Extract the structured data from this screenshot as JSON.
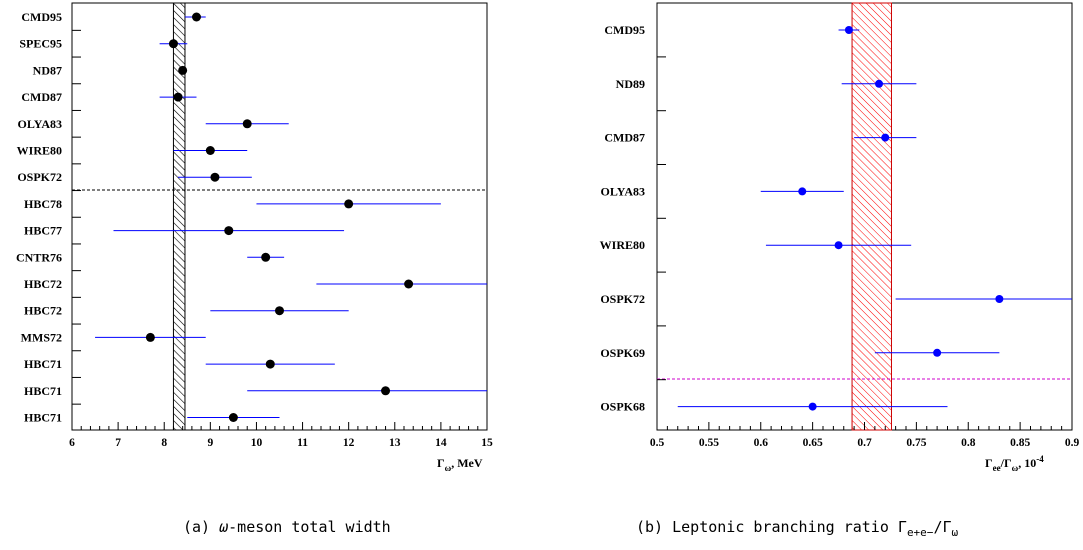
{
  "chart_data": [
    {
      "type": "scatter",
      "title": "",
      "xlabel": "Γ_ω, MeV",
      "xlim": [
        6,
        15
      ],
      "x_ticks": [
        "6",
        "7",
        "8",
        "9",
        "10",
        "11",
        "12",
        "13",
        "14",
        "15"
      ],
      "band": {
        "from": 8.2,
        "to": 8.45,
        "color": "#000000",
        "pattern": "hatch"
      },
      "separator_after_index": 6,
      "separator_color": "#000000",
      "marker_color": "#000000",
      "errorbar_color": "#0000ff",
      "series": [
        {
          "label": "CMD95",
          "value": 8.7,
          "low": 8.45,
          "high": 8.9
        },
        {
          "label": "SPEC95",
          "value": 8.2,
          "low": 7.9,
          "high": 8.5
        },
        {
          "label": "ND87",
          "value": 8.4,
          "low": 8.4,
          "high": 8.4
        },
        {
          "label": "CMD87",
          "value": 8.3,
          "low": 7.9,
          "high": 8.7
        },
        {
          "label": "OLYA83",
          "value": 9.8,
          "low": 8.9,
          "high": 10.7
        },
        {
          "label": "WIRE80",
          "value": 9.0,
          "low": 8.2,
          "high": 9.8
        },
        {
          "label": "OSPK72",
          "value": 9.1,
          "low": 8.3,
          "high": 9.9
        },
        {
          "label": "HBC78",
          "value": 12.0,
          "low": 10.0,
          "high": 14.0
        },
        {
          "label": "HBC77",
          "value": 9.4,
          "low": 6.9,
          "high": 11.9
        },
        {
          "label": "CNTR76",
          "value": 10.2,
          "low": 9.8,
          "high": 10.6
        },
        {
          "label": "HBC72",
          "value": 13.3,
          "low": 11.3,
          "high": 15.0
        },
        {
          "label": "HBC72",
          "value": 10.5,
          "low": 9.0,
          "high": 12.0
        },
        {
          "label": "MMS72",
          "value": 7.7,
          "low": 6.5,
          "high": 8.9
        },
        {
          "label": "HBC71",
          "value": 10.3,
          "low": 8.9,
          "high": 11.7
        },
        {
          "label": "HBC71",
          "value": 12.8,
          "low": 9.8,
          "high": 15.0
        },
        {
          "label": "HBC71",
          "value": 9.5,
          "low": 8.5,
          "high": 10.5
        }
      ]
    },
    {
      "type": "scatter",
      "title": "",
      "xlabel": "Γ_ee/Γ_ω, 10^-4",
      "xlim": [
        0.5,
        0.9
      ],
      "x_ticks": [
        "0.5",
        "0.55",
        "0.6",
        "0.65",
        "0.7",
        "0.75",
        "0.8",
        "0.85",
        "0.9"
      ],
      "band": {
        "from": 0.688,
        "to": 0.726,
        "color": "#ff0000",
        "pattern": "hatch"
      },
      "separator_after_index": 6,
      "separator_color": "#cc00cc",
      "marker_color": "#0000ff",
      "errorbar_color": "#0000ff",
      "series": [
        {
          "label": "CMD95",
          "value": 0.685,
          "low": 0.675,
          "high": 0.695
        },
        {
          "label": "ND89",
          "value": 0.714,
          "low": 0.678,
          "high": 0.75
        },
        {
          "label": "CMD87",
          "value": 0.72,
          "low": 0.69,
          "high": 0.75
        },
        {
          "label": "OLYA83",
          "value": 0.64,
          "low": 0.6,
          "high": 0.68
        },
        {
          "label": "WIRE80",
          "value": 0.675,
          "low": 0.605,
          "high": 0.745
        },
        {
          "label": "OSPK72",
          "value": 0.83,
          "low": 0.73,
          "high": 0.9
        },
        {
          "label": "OSPK69",
          "value": 0.77,
          "low": 0.71,
          "high": 0.83
        },
        {
          "label": "OSPK68",
          "value": 0.65,
          "low": 0.52,
          "high": 0.78
        }
      ]
    }
  ],
  "captions": {
    "a_prefix": "(a) ",
    "a_symbol": "ω",
    "a_rest": "-meson total width",
    "b_text": "(b) Leptonic branching ratio Γ",
    "b_sub": "e+e−",
    "b_mid": "/Γ",
    "b_sub2": "ω"
  },
  "axis_labels": {
    "a_main": "Γ",
    "a_sub": "ω",
    "a_unit": ", MeV",
    "b_main1": "Γ",
    "b_sub1": "ee",
    "b_main2": "/Γ",
    "b_sub2": "ω",
    "b_unit": ", 10",
    "b_exp": "-4"
  }
}
